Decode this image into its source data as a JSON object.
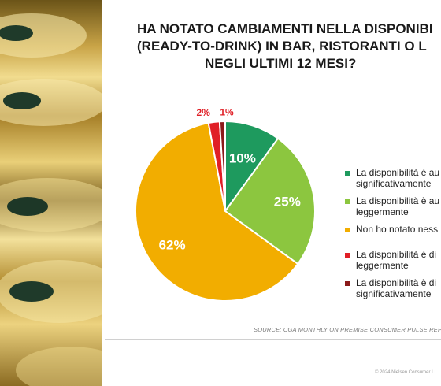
{
  "title_lines": [
    "HA NOTATO CAMBIAMENTI NELLA DISPONIBI",
    "(READY-TO-DRINK) IN BAR, RISTORANTI O L",
    "NEGLI ULTIMI 12 MESI?"
  ],
  "source": "SOURCE: CGA MONTHLY ON PREMISE CONSUMER PULSE REPORT",
  "copyright": "© 2024 Nielsen Consumer LL",
  "chart_data": {
    "type": "pie",
    "series": [
      {
        "label": "La disponibilità è aumentata significativamente",
        "value": 10,
        "display": "10%",
        "color": "#1e9a5e"
      },
      {
        "label": "La disponibilità è aumentata leggermente",
        "value": 25,
        "display": "25%",
        "color": "#8cc63f"
      },
      {
        "label": "Non ho notato nessun cambiamento",
        "value": 62,
        "display": "62%",
        "color": "#f2ad00"
      },
      {
        "label": "La disponibilità è diminuita leggermente",
        "value": 2,
        "display": "2%",
        "color": "#e01f26"
      },
      {
        "label": "La disponibilità è diminuita significativamente",
        "value": 1,
        "display": "1%",
        "color": "#8b1a1a"
      }
    ],
    "legend_text": [
      [
        "La disponibilità è au",
        "significativamente"
      ],
      [
        "La disponibilità è au",
        "leggermente"
      ],
      [
        "Non ho notato ness"
      ],
      [
        "La disponibilità è di",
        "leggermente"
      ],
      [
        "La disponibilità è di",
        "significativamente"
      ]
    ],
    "legend_position": "right"
  }
}
